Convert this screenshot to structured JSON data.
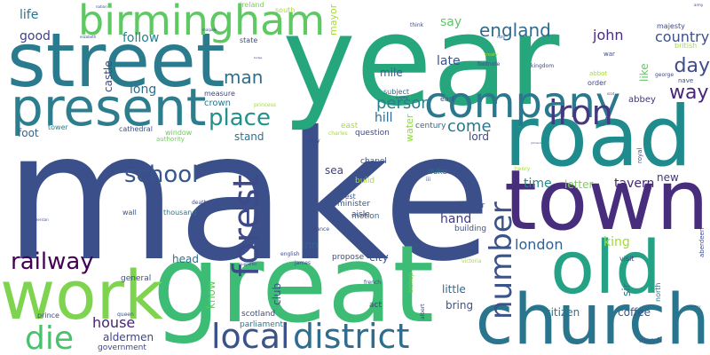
{
  "words": [
    {
      "text": "make",
      "color": "#3b4f8a"
    },
    {
      "text": "year",
      "color": "#26a67c"
    },
    {
      "text": "street",
      "color": "#2b7b8e"
    },
    {
      "text": "great",
      "color": "#3cbc74"
    },
    {
      "text": "road",
      "color": "#1f8b8d"
    },
    {
      "text": "town",
      "color": "#472d7b"
    },
    {
      "text": "church",
      "color": "#29758e"
    },
    {
      "text": "old",
      "color": "#25a286"
    },
    {
      "text": "present",
      "color": "#2c7e8e"
    },
    {
      "text": "work",
      "color": "#7ed34f"
    },
    {
      "text": "company",
      "color": "#2a788e"
    },
    {
      "text": "birmingham",
      "color": "#5ec962"
    },
    {
      "text": "local",
      "color": "#3a538b"
    },
    {
      "text": "district",
      "color": "#2e6d8e"
    },
    {
      "text": "forest",
      "color": "#3e4989"
    },
    {
      "text": "iron",
      "color": "#453882"
    },
    {
      "text": "die",
      "color": "#4ac16d"
    },
    {
      "text": "number",
      "color": "#3b528b"
    },
    {
      "text": "railway",
      "color": "#440154"
    },
    {
      "text": "school",
      "color": "#39568c"
    },
    {
      "text": "place",
      "color": "#21918c"
    },
    {
      "text": "day",
      "color": "#3e4c8a"
    },
    {
      "text": "way",
      "color": "#472777"
    },
    {
      "text": "man",
      "color": "#2e6e8e"
    },
    {
      "text": "person",
      "color": "#27808e"
    },
    {
      "text": "england",
      "color": "#2f6c8e"
    },
    {
      "text": "country",
      "color": "#3c508b"
    },
    {
      "text": "john",
      "color": "#472f7d"
    },
    {
      "text": "london",
      "color": "#355f8d"
    },
    {
      "text": "king",
      "color": "#a2da37"
    },
    {
      "text": "house",
      "color": "#482374"
    },
    {
      "text": "come",
      "color": "#2a788e"
    },
    {
      "text": "late",
      "color": "#3b528b"
    },
    {
      "text": "long",
      "color": "#2d708e"
    },
    {
      "text": "tavern",
      "color": "#472878"
    },
    {
      "text": "hand",
      "color": "#443983"
    },
    {
      "text": "time",
      "color": "#23898e"
    },
    {
      "text": "follow",
      "color": "#26828e"
    },
    {
      "text": "life",
      "color": "#2c738e"
    },
    {
      "text": "good",
      "color": "#424086"
    },
    {
      "text": "say",
      "color": "#5cc863"
    },
    {
      "text": "hill",
      "color": "#2f6b8e"
    },
    {
      "text": "lord",
      "color": "#3f4889"
    },
    {
      "text": "coffee",
      "color": "#38588c"
    },
    {
      "text": "citizen",
      "color": "#2c738e"
    },
    {
      "text": "aldermen",
      "color": "#404588"
    },
    {
      "text": "bring",
      "color": "#3a548c"
    },
    {
      "text": "little",
      "color": "#31688e"
    },
    {
      "text": "city",
      "color": "#3a548c"
    },
    {
      "text": "head",
      "color": "#2c728e"
    },
    {
      "text": "inn",
      "color": "#32658e"
    },
    {
      "text": "sea",
      "color": "#424186"
    },
    {
      "text": "new",
      "color": "#453781"
    },
    {
      "text": "letter",
      "color": "#7ad151"
    },
    {
      "text": "castle",
      "color": "#3e4a89"
    },
    {
      "text": "mile",
      "color": "#365c8d"
    },
    {
      "text": "stand",
      "color": "#2c728e"
    },
    {
      "text": "foot",
      "color": "#32658e"
    },
    {
      "text": "sir",
      "color": "#2a788e"
    },
    {
      "text": "know",
      "color": "#5ec962"
    },
    {
      "text": "club",
      "color": "#39568c"
    },
    {
      "text": "like",
      "color": "#5ec962"
    },
    {
      "text": "abbey",
      "color": "#46337f"
    },
    {
      "text": "water",
      "color": "#8fd744"
    },
    {
      "text": "mayor",
      "color": "#a8db34"
    },
    {
      "text": "crown",
      "color": "#2b758e"
    },
    {
      "text": "measure",
      "color": "#3f4889"
    },
    {
      "text": "scotland",
      "color": "#3e4a89"
    },
    {
      "text": "parliament",
      "color": "#2a788e"
    },
    {
      "text": "government",
      "color": "#404688"
    },
    {
      "text": "general",
      "color": "#3d4d8a"
    },
    {
      "text": "act",
      "color": "#433e85"
    },
    {
      "text": "propose",
      "color": "#3e4a89"
    },
    {
      "text": "building",
      "color": "#3a538b"
    },
    {
      "text": "minister",
      "color": "#3b528b"
    },
    {
      "text": "aisle",
      "color": "#3e4a89"
    },
    {
      "text": "build",
      "color": "#a5db36"
    },
    {
      "text": "chapel",
      "color": "#3b528b"
    },
    {
      "text": "motion",
      "color": "#31688e"
    },
    {
      "text": "west",
      "color": "#38588c"
    },
    {
      "text": "choir",
      "color": "#3a548c"
    },
    {
      "text": "duke",
      "color": "#2e6e8e"
    },
    {
      "text": "century",
      "color": "#31688e"
    },
    {
      "text": "question",
      "color": "#3e4a89"
    },
    {
      "text": "east",
      "color": "#a5db36"
    },
    {
      "text": "subject",
      "color": "#31688e"
    },
    {
      "text": "earl",
      "color": "#3e4989"
    },
    {
      "text": "order",
      "color": "#3e4989"
    },
    {
      "text": "cathedral",
      "color": "#3b528b"
    },
    {
      "text": "window",
      "color": "#6ccd5a"
    },
    {
      "text": "tower",
      "color": "#26828e"
    },
    {
      "text": "thousand",
      "color": "#2a788e"
    },
    {
      "text": "wall",
      "color": "#3b528b"
    },
    {
      "text": "visit",
      "color": "#3e4a89"
    },
    {
      "text": "march",
      "color": "#3a548c"
    },
    {
      "text": "prince",
      "color": "#3e4a89"
    },
    {
      "text": "queen",
      "color": "#38588c"
    },
    {
      "text": "french",
      "color": "#3e4a89"
    },
    {
      "text": "bishop",
      "color": "#6ccd5a"
    },
    {
      "text": "james",
      "color": "#3e4a89"
    },
    {
      "text": "english",
      "color": "#3e4a89"
    },
    {
      "text": "france",
      "color": "#3e4a89"
    },
    {
      "text": "ireland",
      "color": "#7ad151"
    },
    {
      "text": "south",
      "color": "#a5db36"
    },
    {
      "text": "state",
      "color": "#3e4a89"
    },
    {
      "text": "majesty",
      "color": "#3e4a89"
    },
    {
      "text": "british",
      "color": "#a5db36"
    },
    {
      "text": "war",
      "color": "#3e4a89"
    },
    {
      "text": "abbot",
      "color": "#a5db36"
    },
    {
      "text": "nave",
      "color": "#3e4a89"
    },
    {
      "text": "aberdeen",
      "color": "#3e4a89"
    },
    {
      "text": "royal",
      "color": "#3e4a89"
    },
    {
      "text": "north",
      "color": "#2a788e"
    },
    {
      "text": "iii",
      "color": "#3e4a89"
    },
    {
      "text": "charles",
      "color": "#a5db36"
    },
    {
      "text": "lady",
      "color": "#3e4a89"
    },
    {
      "text": "authority",
      "color": "#6ccd5a"
    },
    {
      "text": "death",
      "color": "#3e4a89"
    },
    {
      "text": "albert",
      "color": "#3e4a89"
    },
    {
      "text": "victoria",
      "color": "#a5db36"
    },
    {
      "text": "henry",
      "color": "#a5db36"
    },
    {
      "text": "george",
      "color": "#3e4a89"
    },
    {
      "text": "kingdom",
      "color": "#3e4a89"
    },
    {
      "text": "footnote",
      "color": "#3e4a89"
    },
    {
      "text": "treaty",
      "color": "#a5db36"
    },
    {
      "text": "think",
      "color": "#3e4a89"
    },
    {
      "text": "princess",
      "color": "#a5db36"
    },
    {
      "text": "elizabeth",
      "color": "#3e4a89"
    },
    {
      "text": "nation",
      "color": "#3e4a89"
    },
    {
      "text": "malpole",
      "color": "#3e4a89"
    },
    {
      "text": "enemy",
      "color": "#3e4a89"
    },
    {
      "text": "scot",
      "color": "#3e4a89"
    },
    {
      "text": "supporter",
      "color": "#3e4a89"
    },
    {
      "text": "american",
      "color": "#3e4a89"
    },
    {
      "text": "hereditary",
      "color": "#3e4a89"
    },
    {
      "text": "johnson",
      "color": "#3e4a89"
    },
    {
      "text": "badge",
      "color": "#3e4a89"
    },
    {
      "text": "note",
      "color": "#3e4a89"
    },
    {
      "text": "army",
      "color": "#3e4a89"
    }
  ]
}
